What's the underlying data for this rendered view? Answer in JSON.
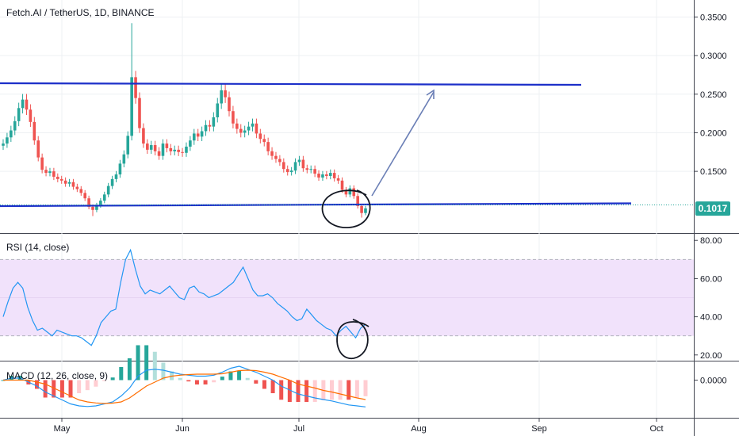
{
  "chart_data": [
    {
      "type": "candlestick",
      "title": "Fetch.AI / TetherUS, 1D, BINANCE",
      "ylim": [
        0.07,
        0.37
      ],
      "y_ticks": [
        "0.3500",
        "0.3000",
        "0.2500",
        "0.2000",
        "0.1500"
      ],
      "y_tick_values": [
        0.35,
        0.3,
        0.25,
        0.2,
        0.15
      ],
      "last_price_label": "0.1017",
      "last_price": 0.1017,
      "x_ticks": [
        "May",
        "Jun",
        "Jul",
        "Aug",
        "Sep",
        "Oct"
      ],
      "colors": {
        "up": "#26a69a",
        "down": "#ef5350",
        "trendline": "#1c2fc9",
        "arrow": "#6b7fb6",
        "badge": "#26a69a"
      },
      "closes": [
        0.186,
        0.194,
        0.203,
        0.215,
        0.232,
        0.243,
        0.23,
        0.214,
        0.19,
        0.168,
        0.152,
        0.148,
        0.15,
        0.143,
        0.14,
        0.138,
        0.134,
        0.136,
        0.13,
        0.127,
        0.122,
        0.115,
        0.104,
        0.1,
        0.106,
        0.112,
        0.12,
        0.131,
        0.14,
        0.146,
        0.16,
        0.172,
        0.196,
        0.272,
        0.245,
        0.206,
        0.186,
        0.178,
        0.184,
        0.176,
        0.17,
        0.186,
        0.18,
        0.176,
        0.178,
        0.175,
        0.174,
        0.182,
        0.19,
        0.199,
        0.195,
        0.202,
        0.21,
        0.208,
        0.22,
        0.238,
        0.255,
        0.246,
        0.228,
        0.212,
        0.205,
        0.2,
        0.203,
        0.208,
        0.212,
        0.199,
        0.192,
        0.188,
        0.176,
        0.17,
        0.166,
        0.162,
        0.153,
        0.149,
        0.151,
        0.162,
        0.165,
        0.154,
        0.152,
        0.153,
        0.147,
        0.142,
        0.146,
        0.144,
        0.148,
        0.141,
        0.138,
        0.126,
        0.12,
        0.128,
        0.118,
        0.105,
        0.096,
        0.102
      ],
      "rsi": {
        "label": "RSI (14, close)",
        "ylim": [
          17,
          83
        ],
        "y_ticks": [
          "80.00",
          "60.00",
          "40.00",
          "20.00"
        ],
        "y_tick_values": [
          80,
          60,
          40,
          20
        ],
        "band": [
          30,
          70
        ],
        "values": [
          40,
          48,
          55,
          58,
          55,
          45,
          38,
          33,
          34,
          32,
          30,
          33,
          32,
          31,
          30,
          30,
          29,
          27,
          25,
          30,
          37,
          40,
          43,
          44,
          58,
          70,
          75,
          65,
          56,
          52,
          54,
          53,
          52,
          54,
          56,
          53,
          50,
          49,
          55,
          56,
          53,
          52,
          50,
          51,
          52,
          54,
          56,
          58,
          62,
          66,
          60,
          54,
          51,
          51,
          52,
          50,
          47,
          45,
          43,
          40,
          38,
          39,
          44,
          41,
          38,
          36,
          34,
          33,
          30,
          33,
          35,
          32,
          29,
          34,
          36
        ],
        "colors": {
          "line": "#2196f3",
          "band": "#f1e2fb",
          "bandline": "#b0b3bd"
        }
      },
      "macd": {
        "label": "MACD (12, 26, close, 9)",
        "y_tick": "0.0000",
        "ylim": [
          -0.019,
          0.009
        ],
        "macd": [
          0.0,
          0.001,
          0.001,
          -0.001,
          -0.003,
          -0.006,
          -0.008,
          -0.01,
          -0.012,
          -0.013,
          -0.0133,
          -0.013,
          -0.012,
          -0.011,
          -0.008,
          -0.004,
          0.002,
          0.005,
          0.0055,
          0.005,
          0.004,
          0.003,
          0.0025,
          0.002,
          0.002,
          0.0025,
          0.004,
          0.006,
          0.007,
          0.0055,
          0.004,
          0.002,
          0.0,
          -0.003,
          -0.005,
          -0.007,
          -0.008,
          -0.009,
          -0.0098,
          -0.0105,
          -0.0115,
          -0.0125,
          -0.013,
          -0.0135
        ],
        "signal": [
          0.0,
          0.0,
          0.0,
          0.0,
          -0.001,
          -0.002,
          -0.004,
          -0.006,
          -0.008,
          -0.01,
          -0.011,
          -0.0115,
          -0.0118,
          -0.0116,
          -0.011,
          -0.009,
          -0.006,
          -0.003,
          -0.001,
          0.001,
          0.002,
          0.0025,
          0.0028,
          0.003,
          0.003,
          0.003,
          0.0032,
          0.004,
          0.0048,
          0.005,
          0.0048,
          0.004,
          0.003,
          0.0015,
          0.0,
          -0.002,
          -0.003,
          -0.004,
          -0.0052,
          -0.006,
          -0.007,
          -0.008,
          -0.009,
          -0.0098
        ],
        "colors": {
          "macd": "#2196f3",
          "signal": "#ff6d00",
          "hist_up": "#26a69a",
          "hist_up_light": "#b2dfdb",
          "hist_down": "#ef5350",
          "hist_down_light": "#ffcdd2"
        }
      }
    }
  ]
}
